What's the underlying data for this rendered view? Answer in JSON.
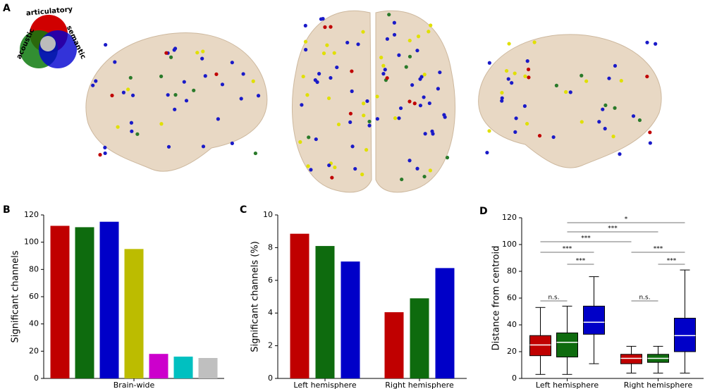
{
  "figure": {
    "panel_labels": [
      "A",
      "B",
      "C",
      "D"
    ],
    "venn_labels": [
      "articulatory",
      "acoustic",
      "semantic"
    ]
  },
  "chart_data": [
    {
      "type": "bar",
      "ylabel": "Significant channels",
      "categories": [
        "Brain-wide"
      ],
      "series": [
        {
          "color": "#c00000",
          "values": [
            112
          ]
        },
        {
          "color": "#0e6b0e",
          "values": [
            111
          ]
        },
        {
          "color": "#0000c8",
          "values": [
            115
          ]
        },
        {
          "color": "#bcbc00",
          "values": [
            95
          ]
        },
        {
          "color": "#cc00cc",
          "values": [
            18
          ]
        },
        {
          "color": "#00c0c0",
          "values": [
            16
          ]
        },
        {
          "color": "#bfbfbf",
          "values": [
            15
          ]
        }
      ],
      "ylim": [
        0,
        120
      ],
      "yticks": [
        0,
        20,
        40,
        60,
        80,
        100,
        120
      ]
    },
    {
      "type": "bar",
      "ylabel": "Significant channels (%)",
      "categories": [
        "Left hemisphere",
        "Right hemisphere"
      ],
      "series": [
        {
          "color": "#c00000",
          "values": [
            8.85,
            4.05
          ]
        },
        {
          "color": "#0e6b0e",
          "values": [
            8.1,
            4.9
          ]
        },
        {
          "color": "#0000c8",
          "values": [
            7.15,
            6.75
          ]
        }
      ],
      "ylim": [
        0,
        10
      ],
      "yticks": [
        0,
        2,
        4,
        6,
        8,
        10
      ]
    },
    {
      "type": "box",
      "ylabel": "Distance from centroid",
      "categories": [
        "Left hemisphere",
        "Right hemisphere"
      ],
      "series": [
        {
          "color": "#c00000",
          "min": [
            3,
            4
          ],
          "q1": [
            17,
            11
          ],
          "median": [
            25,
            15
          ],
          "q3": [
            32,
            18
          ],
          "max": [
            53,
            24
          ]
        },
        {
          "color": "#0e6b0e",
          "min": [
            3,
            4
          ],
          "q1": [
            16,
            12
          ],
          "median": [
            27,
            15
          ],
          "q3": [
            34,
            18
          ],
          "max": [
            54,
            24
          ]
        },
        {
          "color": "#0000c8",
          "min": [
            11,
            4
          ],
          "q1": [
            33,
            20
          ],
          "median": [
            42,
            32
          ],
          "q3": [
            54,
            45
          ],
          "max": [
            76,
            81
          ]
        }
      ],
      "annotations": [
        "*",
        "***",
        "***",
        "***",
        "***",
        "***",
        "***",
        "n.s.",
        "n.s."
      ],
      "ylim": [
        0,
        120
      ],
      "yticks": [
        0,
        20,
        40,
        60,
        80,
        100,
        120
      ]
    }
  ]
}
